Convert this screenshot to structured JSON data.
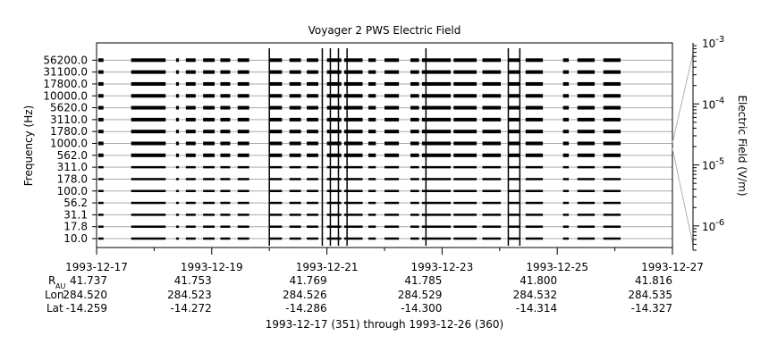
{
  "chart_data": {
    "type": "heatmap",
    "title": "Voyager 2 PWS Electric Field",
    "ylabel": "Frequency (Hz)",
    "colorbar_label": "Electric Field (V/m)",
    "y_scale": "log",
    "channels": [
      "10.0",
      "17.8",
      "31.1",
      "56.2",
      "100.0",
      "178.0",
      "311.0",
      "562.0",
      "1000.0",
      "1780.0",
      "3110.0",
      "5620.0",
      "10000.0",
      "17800.0",
      "31100.0",
      "56200.0"
    ],
    "x_ticks": [
      "1993-12-17",
      "1993-12-19",
      "1993-12-21",
      "1993-12-23",
      "1993-12-25",
      "1993-12-27"
    ],
    "xlim_days": [
      0,
      10
    ],
    "colorbar_ticks": [
      {
        "base": "10",
        "exp": "-6",
        "value": 1e-06
      },
      {
        "base": "10",
        "exp": "-5",
        "value": 1e-05
      },
      {
        "base": "10",
        "exp": "-4",
        "value": 0.0001
      },
      {
        "base": "10",
        "exp": "-3",
        "value": 0.001
      }
    ],
    "colorbar_range": [
      4e-07,
      0.001
    ],
    "data_segments_days": [
      [
        0.03,
        0.12
      ],
      [
        0.6,
        1.2
      ],
      [
        1.38,
        1.43
      ],
      [
        1.55,
        1.72
      ],
      [
        1.85,
        2.05
      ],
      [
        2.15,
        2.32
      ],
      [
        2.45,
        2.65
      ],
      [
        3.0,
        3.22
      ],
      [
        3.35,
        3.55
      ],
      [
        3.65,
        3.85
      ],
      [
        4.0,
        4.25
      ],
      [
        4.3,
        4.62
      ],
      [
        4.72,
        4.85
      ],
      [
        5.0,
        5.25
      ],
      [
        5.45,
        5.6
      ],
      [
        5.65,
        6.15
      ],
      [
        6.2,
        6.6
      ],
      [
        6.7,
        7.02
      ],
      [
        7.15,
        7.35
      ],
      [
        7.45,
        7.75
      ],
      [
        8.1,
        8.2
      ],
      [
        8.35,
        8.65
      ],
      [
        8.8,
        9.1
      ]
    ],
    "spike_days": [
      3.0,
      3.92,
      4.06,
      4.2,
      4.35,
      5.72,
      7.15,
      7.35
    ],
    "ephemeris": {
      "labels": {
        "r_base": "R",
        "r_sub": "AU",
        "lon": "Lon",
        "lat": "Lat"
      },
      "r_au": [
        "41.737",
        "41.753",
        "41.769",
        "41.785",
        "41.800",
        "41.816"
      ],
      "lon": [
        "284.520",
        "284.523",
        "284.526",
        "284.529",
        "284.532",
        "284.535"
      ],
      "lat": [
        "-14.259",
        "-14.272",
        "-14.286",
        "-14.300",
        "-14.314",
        "-14.327"
      ]
    },
    "time_range_caption": "1993-12-17 (351) through 1993-12-26 (360)"
  }
}
